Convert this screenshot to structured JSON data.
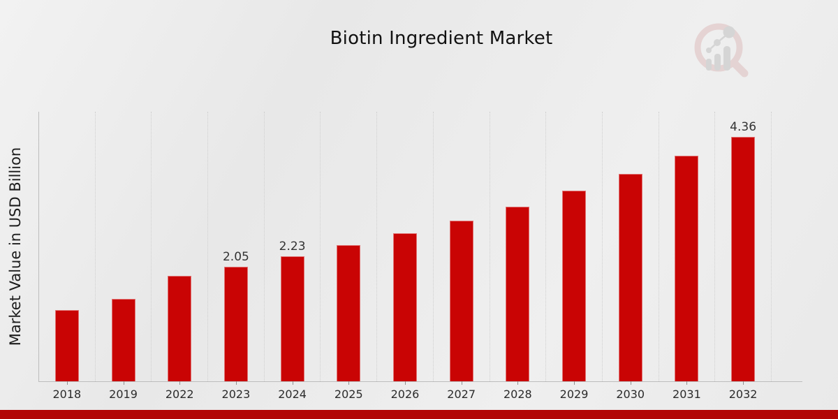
{
  "page": {
    "title": "Biotin Ingredient Market",
    "logo_icon": "magnifier-bar-chart-watermark-icon",
    "footer_strip_color": "#b20505",
    "background_color": "#ebebeb"
  },
  "chart_data": {
    "type": "bar",
    "title": "Biotin Ingredient Market",
    "xlabel": "",
    "ylabel": "Market Value in USD Billion",
    "categories": [
      "2018",
      "2019",
      "2022",
      "2023",
      "2024",
      "2025",
      "2026",
      "2027",
      "2028",
      "2029",
      "2030",
      "2031",
      "2032"
    ],
    "values": [
      1.27,
      1.47,
      1.88,
      2.05,
      2.23,
      2.43,
      2.64,
      2.87,
      3.12,
      3.4,
      3.7,
      4.02,
      4.36
    ],
    "data_labels": [
      "",
      "",
      "",
      "2.05",
      "2.23",
      "",
      "",
      "",
      "",
      "",
      "",
      "",
      "4.36"
    ],
    "ylim": [
      0,
      4.81
    ],
    "bar_color": "#c90404",
    "grid": "vertical dotted lines between categories",
    "legend": "none",
    "axis_color": "#bdbdbd",
    "label_color": "#333333"
  }
}
